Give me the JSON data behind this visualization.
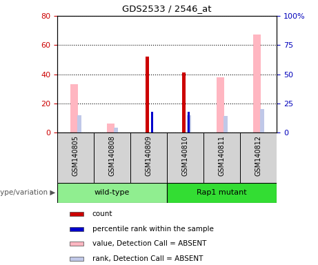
{
  "title": "GDS2533 / 2546_at",
  "samples": [
    "GSM140805",
    "GSM140808",
    "GSM140809",
    "GSM140810",
    "GSM140811",
    "GSM140812"
  ],
  "groups": [
    {
      "label": "wild-type",
      "color": "#90EE90",
      "start": 0,
      "end": 3
    },
    {
      "label": "Rap1 mutant",
      "color": "#33DD33",
      "start": 3,
      "end": 6
    }
  ],
  "count_values": [
    0,
    0,
    52,
    41,
    0,
    0
  ],
  "percentile_values": [
    0,
    0,
    18,
    18,
    0,
    0
  ],
  "value_absent": [
    33,
    6,
    0,
    0,
    38,
    67
  ],
  "rank_absent": [
    15,
    4,
    0,
    15,
    14,
    20
  ],
  "left_ylim": [
    0,
    80
  ],
  "right_ylim": [
    0,
    100
  ],
  "left_yticks": [
    0,
    20,
    40,
    60,
    80
  ],
  "right_yticks": [
    0,
    25,
    50,
    75,
    100
  ],
  "right_yticklabels": [
    "0",
    "25",
    "50",
    "75",
    "100%"
  ],
  "count_color": "#CC0000",
  "percentile_color": "#0000CC",
  "value_absent_color": "#FFB6C1",
  "rank_absent_color": "#C0C8E8",
  "grid_color": "black",
  "bg_color": "#D3D3D3",
  "plot_bg": "white",
  "left_axis_color": "#CC0000",
  "right_axis_color": "#0000BB",
  "legend_items": [
    {
      "label": "count",
      "color": "#CC0000"
    },
    {
      "label": "percentile rank within the sample",
      "color": "#0000CC"
    },
    {
      "label": "value, Detection Call = ABSENT",
      "color": "#FFB6C1"
    },
    {
      "label": "rank, Detection Call = ABSENT",
      "color": "#C0C8E8"
    }
  ]
}
